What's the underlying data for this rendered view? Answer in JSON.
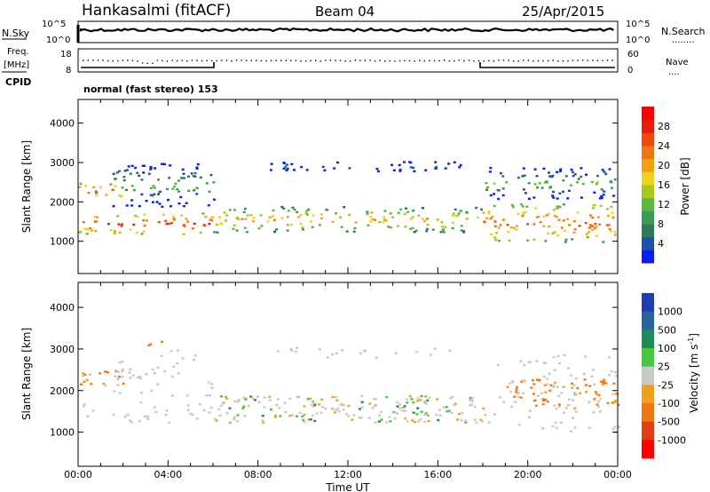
{
  "header": {
    "station": "Hankasalmi (fitACF)",
    "beam": "Beam 04",
    "date": "25/Apr/2015"
  },
  "strip_labels": {
    "nsky": "N.Sky",
    "nsearch": "N.Search",
    "nsearch_dots": "........",
    "freq_top": "Freq.",
    "freq_unit": "[MHz]",
    "nave": "Nave",
    "nave_dots": "....",
    "cpid": "CPID",
    "mode": "normal (fast stereo) 153",
    "noise_tick_top": "10^5",
    "noise_tick_bottom": "10^0",
    "noise_tick_top_r": "10^5",
    "noise_tick_bottom_r": "10^0",
    "freq_tick_top": "18",
    "freq_tick_bottom": "8",
    "nave_tick_top": "60",
    "nave_tick_bottom": "0"
  },
  "axes": {
    "xlabel": "Time UT",
    "ylabel": "Slant Range [km]",
    "xticks": [
      "00:00",
      "04:00",
      "08:00",
      "12:00",
      "16:00",
      "20:00",
      "00:00"
    ],
    "yticks": [
      "1000",
      "2000",
      "3000",
      "4000"
    ]
  },
  "power_colorbar": {
    "label": "Power [dB]",
    "ticks": [
      "4",
      "8",
      "12",
      "16",
      "20",
      "24",
      "28"
    ],
    "colors": [
      "#0a1ef0",
      "#1e50a8",
      "#2f7a5a",
      "#3a9a5a",
      "#5ab83a",
      "#a8c81e",
      "#f0d21e",
      "#f5a014",
      "#f07814",
      "#f04a0a",
      "#e61e0a",
      "#ff0000"
    ]
  },
  "velocity_colorbar": {
    "label": "Velocity [m s^-1]",
    "label_main": "Velocity [m s",
    "label_sup": "-1",
    "label_end": "]",
    "ticks": [
      "1000",
      "500",
      "100",
      "25",
      "-25",
      "-100",
      "-500",
      "-1000"
    ],
    "colors": [
      "#1e3cb4",
      "#2a64a0",
      "#1e8c5a",
      "#46c83c",
      "#c8c8c8",
      "#f0a01e",
      "#f07814",
      "#e63c14",
      "#ff0000"
    ]
  },
  "chart_data": {
    "type": "heatmap",
    "title": "Hankasalmi (fitACF) Beam 04 25/Apr/2015",
    "xlabel": "Time UT",
    "ylabel": "Slant Range [km]",
    "xlim": [
      0,
      24
    ],
    "ylim": [
      180,
      4600
    ],
    "x_units": "hours UT",
    "panels": [
      {
        "name": "Power [dB]",
        "clim": [
          0,
          30
        ],
        "backscatter_bands": [
          {
            "t_start": 0,
            "t_end": 6,
            "range_low": 1200,
            "range_high": 1750,
            "power": 28
          },
          {
            "t_start": 0,
            "t_end": 2,
            "range_low": 2100,
            "range_high": 2500,
            "power": 27
          },
          {
            "t_start": 6,
            "t_end": 18,
            "range_low": 1250,
            "range_high": 1900,
            "power": 22
          },
          {
            "t_start": 18,
            "t_end": 24,
            "range_low": 1000,
            "range_high": 2000,
            "power": 26
          },
          {
            "t_start": 1.5,
            "t_end": 6,
            "range_low": 1900,
            "range_high": 3000,
            "power": 14
          },
          {
            "t_start": 8,
            "t_end": 17,
            "range_low": 2800,
            "range_high": 3050,
            "power": 8
          },
          {
            "t_start": 18,
            "t_end": 24,
            "range_low": 2100,
            "range_high": 2900,
            "power": 14
          }
        ]
      },
      {
        "name": "Velocity [m s^-1]",
        "clim": [
          -1000,
          1000
        ],
        "backscatter_bands": [
          {
            "t_start": 0,
            "t_end": 2,
            "range_low": 2100,
            "range_high": 2500,
            "velocity": -150
          },
          {
            "t_start": 3,
            "t_end": 4,
            "range_low": 3100,
            "range_high": 3250,
            "velocity": -200
          },
          {
            "t_start": 6,
            "t_end": 18,
            "range_low": 1250,
            "range_high": 1900,
            "velocity": 0
          },
          {
            "t_start": 19,
            "t_end": 24,
            "range_low": 1600,
            "range_high": 2300,
            "velocity": -150
          }
        ]
      }
    ],
    "noise": {
      "nsky_log10": 0.9,
      "nsearch_log10": 1.0
    },
    "frequency_mhz": 12,
    "nave": 22,
    "cpid": 153
  }
}
